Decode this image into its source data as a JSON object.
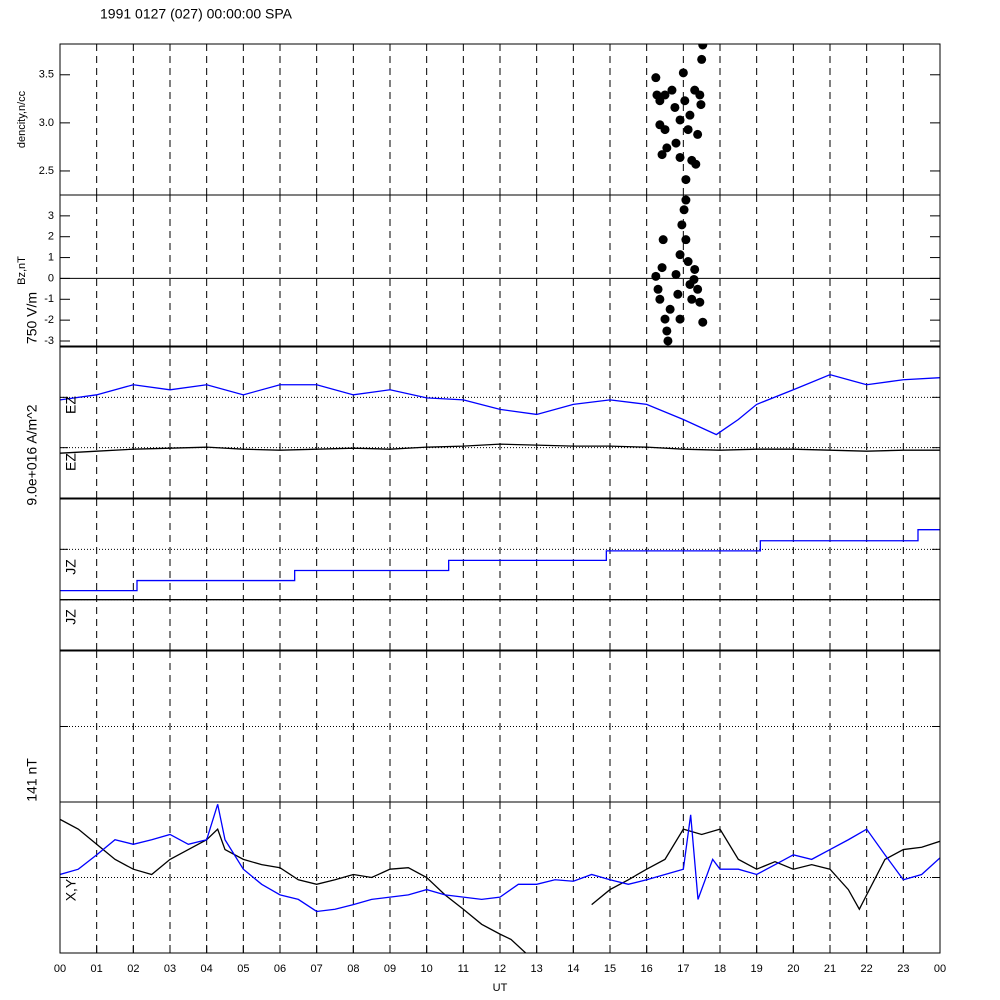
{
  "chart_data": [
    {
      "type": "scatter",
      "title": "1991 0127 (027) 00:00:00 SPA",
      "ylabel": "dencity,n/cc",
      "color": "#000000",
      "xlim": [
        0,
        24
      ],
      "ylim": [
        2.25,
        3.82
      ],
      "yticks": [
        2.5,
        {
          "value": 3,
          "label": "3.0"
        },
        3.5
      ],
      "x": [
        16.25,
        16.28,
        16.36,
        16.5,
        16.36,
        16.5,
        16.42,
        16.55,
        16.77,
        16.91,
        17.0,
        17.04,
        17.13,
        17.18,
        17.23,
        16.91,
        17.07,
        17.34,
        17.39,
        17.45,
        17.5,
        17.53,
        17.48,
        17.31,
        16.69,
        16.8
      ],
      "values": [
        3.47,
        3.29,
        3.23,
        3.29,
        2.98,
        2.93,
        2.67,
        2.74,
        3.16,
        3.03,
        3.52,
        3.23,
        2.93,
        3.08,
        2.61,
        2.64,
        2.41,
        2.57,
        2.88,
        3.29,
        3.66,
        3.81,
        3.19,
        3.34,
        3.34,
        2.79
      ]
    },
    {
      "type": "scatter",
      "ylabel": "Bz,nT",
      "color": "#000000",
      "zero_line": true,
      "xlim": [
        0,
        24
      ],
      "ylim": [
        -3.24,
        4.0
      ],
      "yticks": [
        -3,
        -2,
        -1,
        0,
        1,
        2,
        3
      ],
      "x": [
        16.25,
        16.31,
        16.36,
        16.42,
        16.45,
        16.5,
        16.55,
        16.58,
        16.64,
        16.91,
        16.85,
        16.91,
        16.96,
        17.02,
        17.07,
        17.13,
        17.18,
        17.23,
        17.31,
        17.39,
        17.45,
        17.53,
        17.29,
        17.07,
        16.8
      ],
      "values": [
        0.1,
        -0.52,
        -1.0,
        0.52,
        1.86,
        -1.95,
        -2.52,
        -3.0,
        -1.48,
        -1.95,
        -0.76,
        1.14,
        2.57,
        3.29,
        1.86,
        0.81,
        -0.29,
        -1.0,
        0.43,
        -0.52,
        -1.14,
        -2.1,
        -0.05,
        3.76,
        0.19
      ]
    },
    {
      "type": "line",
      "unit_label": "750 V/m",
      "xlim": [
        0,
        24
      ],
      "ylim": [
        -1.5,
        1.5
      ],
      "dotted_lines": [
        0.5,
        -0.5
      ],
      "series": [
        {
          "name": "EZ",
          "color": "#0000ff",
          "x": [
            0,
            1,
            2,
            3,
            4,
            5,
            6,
            7,
            8,
            9,
            10,
            11,
            12,
            13,
            14,
            15,
            16,
            17,
            17.9,
            18.5,
            19,
            20,
            21,
            22,
            23,
            24
          ],
          "values": [
            0.45,
            0.55,
            0.75,
            0.65,
            0.75,
            0.55,
            0.75,
            0.75,
            0.55,
            0.65,
            0.49,
            0.45,
            0.26,
            0.16,
            0.36,
            0.45,
            0.36,
            0.06,
            -0.24,
            0.06,
            0.36,
            0.65,
            0.95,
            0.75,
            0.85,
            0.89
          ]
        },
        {
          "name": "EZ",
          "color": "#000000",
          "x": [
            0,
            1,
            2,
            3,
            4,
            5,
            6,
            7,
            8,
            9,
            10,
            11,
            12,
            13,
            14,
            15,
            16,
            17,
            18,
            19,
            20,
            21,
            22,
            23,
            24
          ],
          "values": [
            -0.61,
            -0.57,
            -0.53,
            -0.51,
            -0.49,
            -0.53,
            -0.55,
            -0.53,
            -0.51,
            -0.53,
            -0.49,
            -0.47,
            -0.43,
            -0.45,
            -0.47,
            -0.47,
            -0.49,
            -0.53,
            -0.55,
            -0.53,
            -0.53,
            -0.55,
            -0.57,
            -0.55,
            -0.55
          ]
        }
      ]
    },
    {
      "type": "step",
      "unit_label": "9.0e+016 A/m^2",
      "xlim": [
        0,
        24
      ],
      "ylim": [
        -1.5,
        1.5
      ],
      "dotted_lines": [
        0.5,
        -0.5
      ],
      "series": [
        {
          "name": "JZ",
          "color": "#0000ff",
          "x": [
            0,
            2.1,
            6.4,
            10.6,
            14.9,
            19.1,
            23.4
          ],
          "values": [
            -0.32,
            -0.12,
            0.08,
            0.28,
            0.47,
            0.67,
            0.89
          ]
        },
        {
          "name": "JZ",
          "color": "#000000",
          "x": [
            0
          ],
          "values": [
            -0.5
          ]
        }
      ]
    },
    {
      "type": "line",
      "xlim": [
        0,
        24
      ],
      "ylim": [
        -1,
        1
      ],
      "dotted_lines": [
        0
      ],
      "series": []
    },
    {
      "type": "line",
      "unit_label": "141 nT",
      "series_label": "X,Y",
      "xlabel": "UT",
      "xlim": [
        0,
        24
      ],
      "ylim": [
        -1,
        1
      ],
      "dotted_lines": [
        0
      ],
      "xticks": [
        {
          "value": 0,
          "label": "00"
        },
        {
          "value": 1,
          "label": "01"
        },
        {
          "value": 2,
          "label": "02"
        },
        {
          "value": 3,
          "label": "03"
        },
        {
          "value": 4,
          "label": "04"
        },
        {
          "value": 5,
          "label": "05"
        },
        {
          "value": 6,
          "label": "06"
        },
        {
          "value": 7,
          "label": "07"
        },
        {
          "value": 8,
          "label": "08"
        },
        {
          "value": 9,
          "label": "09"
        },
        {
          "value": 10,
          "label": "10"
        },
        {
          "value": 11,
          "label": "11"
        },
        {
          "value": 12,
          "label": "12"
        },
        {
          "value": 13,
          "label": "13"
        },
        {
          "value": 14,
          "label": "14"
        },
        {
          "value": 15,
          "label": "15"
        },
        {
          "value": 16,
          "label": "16"
        },
        {
          "value": 17,
          "label": "17"
        },
        {
          "value": 18,
          "label": "18"
        },
        {
          "value": 19,
          "label": "19"
        },
        {
          "value": 20,
          "label": "20"
        },
        {
          "value": 21,
          "label": "21"
        },
        {
          "value": 22,
          "label": "22"
        },
        {
          "value": 23,
          "label": "23"
        },
        {
          "value": 24,
          "label": "00"
        }
      ],
      "series": [
        {
          "color": "#000000",
          "x": [
            0,
            0.5,
            1,
            1.5,
            2,
            2.5,
            3,
            3.5,
            4,
            4.3,
            4.5,
            5,
            5.5,
            6,
            6.5,
            7,
            7.5,
            8,
            8.5,
            9,
            9.5,
            10,
            10.5,
            11,
            11.5,
            12,
            12.3,
            12.7,
            13.5,
            14.5,
            15,
            15.5,
            16,
            16.5,
            17,
            17.5,
            18,
            18.5,
            19,
            19.5,
            20,
            20.5,
            21,
            21.5,
            21.8,
            22,
            22.5,
            23,
            23.5,
            24
          ],
          "values": [
            0.77,
            0.64,
            0.44,
            0.24,
            0.11,
            0.04,
            0.24,
            0.37,
            0.5,
            0.64,
            0.37,
            0.24,
            0.17,
            0.13,
            -0.03,
            -0.09,
            -0.03,
            0.04,
            0,
            0.11,
            0.13,
            0,
            -0.23,
            -0.42,
            -0.62,
            -0.75,
            -0.82,
            -1.0,
            null,
            -0.36,
            -0.16,
            -0.03,
            0.11,
            0.24,
            0.64,
            0.57,
            0.64,
            0.24,
            0.11,
            0.21,
            0.11,
            0.17,
            0.11,
            -0.16,
            -0.42,
            -0.23,
            0.24,
            0.37,
            0.4,
            0.48
          ]
        },
        {
          "color": "#0000ff",
          "x": [
            0,
            0.5,
            1,
            1.5,
            2,
            2.5,
            3,
            3.5,
            4,
            4.3,
            4.5,
            5,
            5.5,
            6,
            6.5,
            7,
            7.5,
            8,
            8.5,
            9,
            9.5,
            10,
            10.5,
            11,
            11.5,
            12,
            12.5,
            13,
            13.5,
            14,
            14.5,
            15,
            15.5,
            16,
            16.5,
            17,
            17.2,
            17.4,
            17.8,
            18,
            18.5,
            19,
            19.5,
            20,
            20.5,
            21,
            21.5,
            22,
            22.5,
            23,
            23.5,
            24
          ],
          "values": [
            0.04,
            0.11,
            0.3,
            0.5,
            0.44,
            0.5,
            0.57,
            0.44,
            0.5,
            0.97,
            0.5,
            0.11,
            -0.09,
            -0.23,
            -0.29,
            -0.45,
            -0.42,
            -0.36,
            -0.29,
            -0.26,
            -0.23,
            -0.16,
            -0.23,
            -0.26,
            -0.29,
            -0.26,
            -0.09,
            -0.09,
            -0.03,
            -0.05,
            0.04,
            -0.03,
            -0.09,
            -0.03,
            0.04,
            0.11,
            0.83,
            -0.29,
            0.24,
            0.11,
            0.11,
            0.04,
            0.17,
            0.3,
            0.24,
            0.37,
            0.5,
            0.64,
            0.3,
            -0.03,
            0.04,
            0.26
          ]
        }
      ]
    }
  ]
}
